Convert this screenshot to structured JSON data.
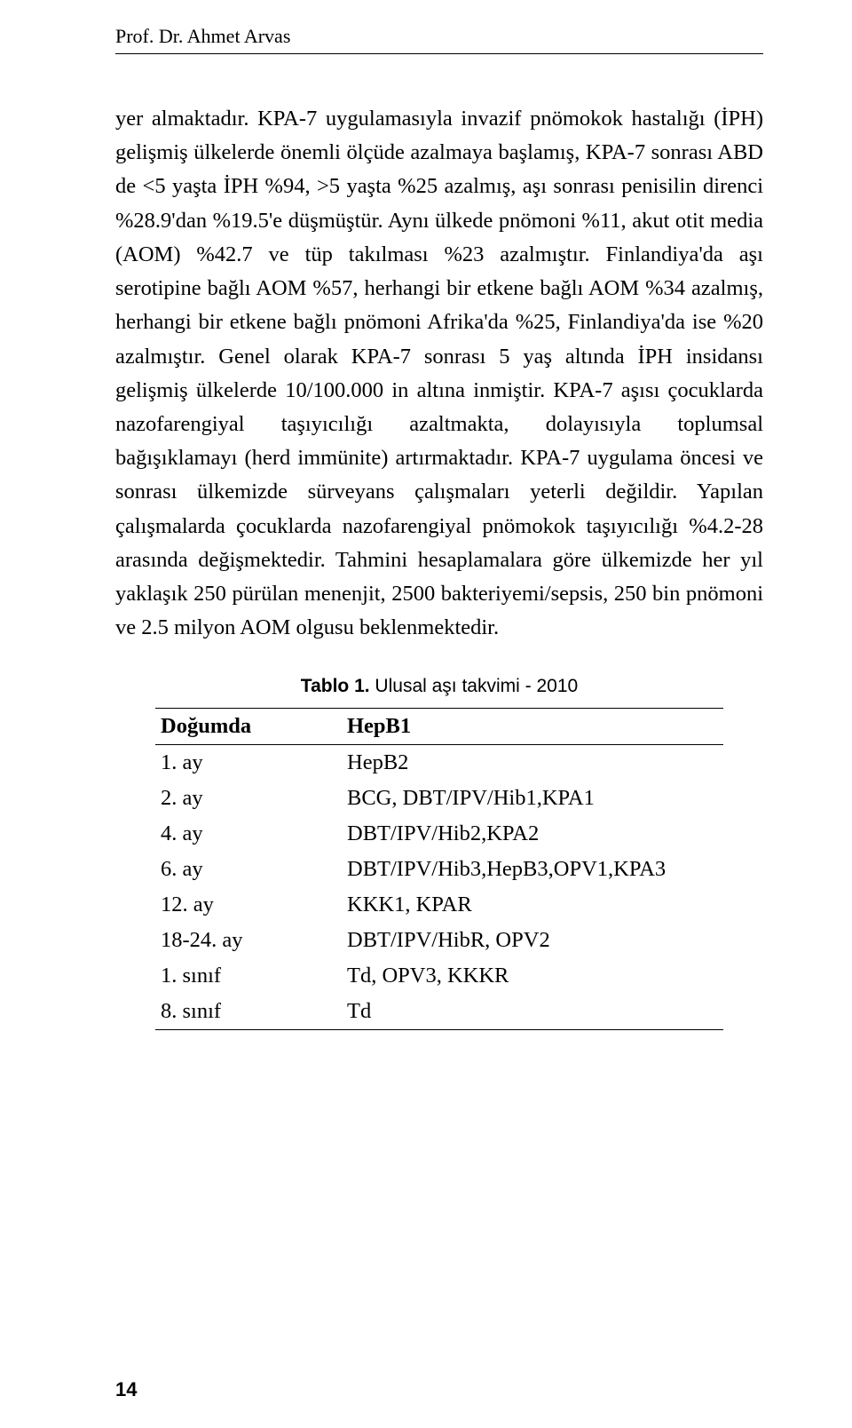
{
  "header": {
    "author": "Prof. Dr. Ahmet Arvas"
  },
  "body": {
    "paragraph": "yer almaktadır. KPA-7 uygulamasıyla invazif pnömokok hastalığı (İPH) gelişmiş ülkelerde önemli ölçüde azalmaya başlamış, KPA-7 sonrası ABD de <5 yaşta İPH %94, >5 yaşta %25 azalmış, aşı sonrası penisilin direnci %28.9'dan %19.5'e düşmüştür. Aynı ülkede pnömoni %11, akut otit media (AOM) %42.7 ve tüp takılması %23 azalmıştır. Finlandiya'da aşı serotipine bağlı AOM %57, herhangi bir etkene bağlı AOM %34 azalmış, herhangi bir etkene bağlı pnömoni Afrika'da %25, Finlandiya'da ise %20 azalmıştır. Genel olarak KPA-7 sonrası 5 yaş altında İPH insidansı gelişmiş ülkelerde 10/100.000 in altına inmiştir. KPA-7 aşısı çocuklarda nazofarengiyal taşıyıcılığı azaltmakta, dolayısıyla toplumsal bağışıklamayı (herd immünite) artırmaktadır. KPA-7 uygulama öncesi ve sonrası ülkemizde sürveyans çalışmaları yeterli değildir. Yapılan çalışmalarda çocuklarda nazofarengiyal pnömokok taşıyıcılığı %4.2-28 arasında değişmektedir. Tahmini hesaplamalara göre ülkemizde her yıl yaklaşık 250 pürülan menenjit, 2500 bakteriyemi/sepsis, 250 bin pnömoni ve 2.5 milyon AOM olgusu beklenmektedir."
  },
  "table": {
    "caption_bold": "Tablo 1.",
    "caption_rest": " Ulusal aşı takvimi - 2010",
    "head_col1": "Doğumda",
    "head_col2": "HepB1",
    "rows": [
      {
        "c1": "1. ay",
        "c2": "HepB2"
      },
      {
        "c1": "2. ay",
        "c2": "BCG, DBT/IPV/Hib1,KPA1"
      },
      {
        "c1": "4. ay",
        "c2": "DBT/IPV/Hib2,KPA2"
      },
      {
        "c1": "6. ay",
        "c2": "DBT/IPV/Hib3,HepB3,OPV1,KPA3"
      },
      {
        "c1": "12. ay",
        "c2": "KKK1, KPAR"
      },
      {
        "c1": "18-24. ay",
        "c2": "DBT/IPV/HibR, OPV2"
      },
      {
        "c1": "1. sınıf",
        "c2": "Td, OPV3, KKKR"
      },
      {
        "c1": "8. sınıf",
        "c2": "Td"
      }
    ]
  },
  "footer": {
    "page_number": "14"
  }
}
